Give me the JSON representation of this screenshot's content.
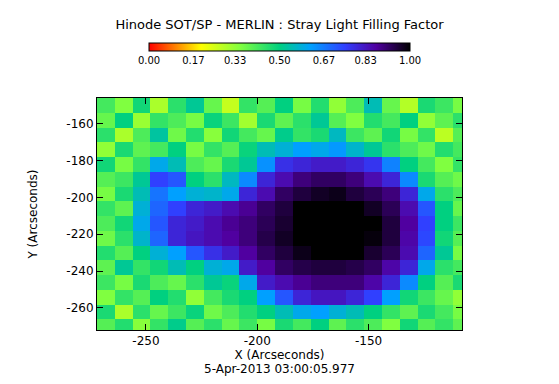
{
  "chart_data": {
    "type": "heatmap",
    "title": "Hinode SOT/SP - MERLIN : Stray Light Filling Factor",
    "x_label": "X (Arcseconds)",
    "y_label": "Y (Arcseconds)",
    "annotation": "5-Apr-2013 03:00:05.977",
    "xlim": [
      -272,
      -108
    ],
    "ylim": [
      -272,
      -146
    ],
    "xticks": [
      -250,
      -200,
      -150
    ],
    "yticks": [
      -260,
      -240,
      -220,
      -200,
      -180,
      -160
    ],
    "x": [
      -268,
      -260,
      -252,
      -244,
      -236,
      -228,
      -220,
      -212,
      -204,
      -196,
      -188,
      -180,
      -172,
      -164,
      -156,
      -148,
      -140,
      -132,
      -124,
      -116,
      -108
    ],
    "y": [
      -150,
      -158,
      -166,
      -174,
      -182,
      -190,
      -198,
      -206,
      -214,
      -222,
      -230,
      -238,
      -246,
      -254,
      -262,
      -270
    ],
    "cells": [
      [
        0.42,
        0.35,
        0.48,
        0.3,
        0.45,
        0.52,
        0.38,
        0.27,
        0.44,
        0.4,
        0.5,
        0.36,
        0.46,
        0.33,
        0.41,
        0.55,
        0.38,
        0.29,
        0.47,
        0.43,
        0.36
      ],
      [
        0.38,
        0.5,
        0.32,
        0.44,
        0.41,
        0.36,
        0.49,
        0.43,
        0.31,
        0.47,
        0.39,
        0.45,
        0.52,
        0.4,
        0.35,
        0.46,
        0.42,
        0.5,
        0.33,
        0.39,
        0.45
      ],
      [
        0.45,
        0.3,
        0.41,
        0.53,
        0.37,
        0.46,
        0.34,
        0.48,
        0.42,
        0.38,
        0.51,
        0.44,
        0.47,
        0.56,
        0.43,
        0.39,
        0.48,
        0.36,
        0.44,
        0.28,
        0.4
      ],
      [
        0.33,
        0.47,
        0.39,
        0.42,
        0.5,
        0.36,
        0.44,
        0.4,
        0.49,
        0.55,
        0.58,
        0.62,
        0.6,
        0.63,
        0.57,
        0.52,
        0.45,
        0.41,
        0.37,
        0.46,
        0.42
      ],
      [
        0.48,
        0.36,
        0.44,
        0.6,
        0.55,
        0.41,
        0.38,
        0.47,
        0.52,
        0.64,
        0.78,
        0.8,
        0.82,
        0.82,
        0.8,
        0.77,
        0.66,
        0.5,
        0.42,
        0.35,
        0.44
      ],
      [
        0.4,
        0.43,
        0.52,
        0.75,
        0.72,
        0.5,
        0.45,
        0.56,
        0.65,
        0.8,
        0.85,
        0.9,
        0.92,
        0.92,
        0.9,
        0.85,
        0.8,
        0.65,
        0.47,
        0.4,
        0.37
      ],
      [
        0.36,
        0.47,
        0.55,
        0.68,
        0.62,
        0.58,
        0.57,
        0.6,
        0.8,
        0.85,
        0.92,
        0.95,
        0.97,
        0.98,
        0.95,
        0.93,
        0.9,
        0.8,
        0.6,
        0.45,
        0.41
      ],
      [
        0.44,
        0.39,
        0.58,
        0.7,
        0.75,
        0.8,
        0.82,
        0.85,
        0.88,
        0.92,
        0.95,
        1.0,
        1.0,
        1.0,
        1.0,
        0.97,
        0.93,
        0.85,
        0.72,
        0.5,
        0.38
      ],
      [
        0.41,
        0.48,
        0.6,
        0.72,
        0.8,
        0.82,
        0.85,
        0.88,
        0.9,
        0.93,
        0.96,
        1.0,
        1.0,
        1.0,
        1.0,
        1.0,
        0.95,
        0.87,
        0.75,
        0.5,
        0.43
      ],
      [
        0.37,
        0.45,
        0.57,
        0.7,
        0.8,
        0.83,
        0.85,
        0.87,
        0.9,
        0.94,
        0.97,
        1.0,
        1.0,
        1.0,
        1.0,
        0.99,
        0.95,
        0.86,
        0.74,
        0.48,
        0.4
      ],
      [
        0.46,
        0.4,
        0.5,
        0.58,
        0.62,
        0.72,
        0.78,
        0.82,
        0.87,
        0.92,
        0.95,
        0.98,
        1.0,
        1.0,
        1.0,
        0.96,
        0.93,
        0.85,
        0.7,
        0.52,
        0.36
      ],
      [
        0.39,
        0.52,
        0.44,
        0.48,
        0.55,
        0.5,
        0.58,
        0.6,
        0.82,
        0.87,
        0.92,
        0.94,
        0.95,
        0.95,
        0.94,
        0.92,
        0.86,
        0.8,
        0.6,
        0.45,
        0.42
      ],
      [
        0.43,
        0.36,
        0.47,
        0.41,
        0.38,
        0.45,
        0.52,
        0.49,
        0.6,
        0.82,
        0.85,
        0.88,
        0.9,
        0.9,
        0.9,
        0.86,
        0.8,
        0.65,
        0.5,
        0.4,
        0.47
      ],
      [
        0.35,
        0.44,
        0.4,
        0.5,
        0.46,
        0.33,
        0.42,
        0.47,
        0.5,
        0.62,
        0.72,
        0.8,
        0.83,
        0.83,
        0.8,
        0.75,
        0.62,
        0.48,
        0.43,
        0.38,
        0.33
      ],
      [
        0.47,
        0.3,
        0.45,
        0.38,
        0.43,
        0.49,
        0.37,
        0.41,
        0.46,
        0.5,
        0.55,
        0.6,
        0.62,
        0.58,
        0.55,
        0.5,
        0.44,
        0.39,
        0.47,
        0.42,
        0.36
      ],
      [
        0.4,
        0.46,
        0.34,
        0.44,
        0.51,
        0.4,
        0.45,
        0.38,
        0.43,
        0.36,
        0.47,
        0.42,
        0.5,
        0.39,
        0.45,
        0.41,
        0.35,
        0.48,
        0.4,
        0.44,
        0.39
      ]
    ],
    "colorbar_range": [
      0,
      1
    ],
    "colorbar_ticks": [
      {
        "value": 0,
        "label": "0.00"
      },
      0.17,
      0.33,
      {
        "value": 0.5,
        "label": "0.50"
      },
      0.67,
      0.83,
      {
        "value": 1,
        "label": "1.00"
      }
    ]
  }
}
